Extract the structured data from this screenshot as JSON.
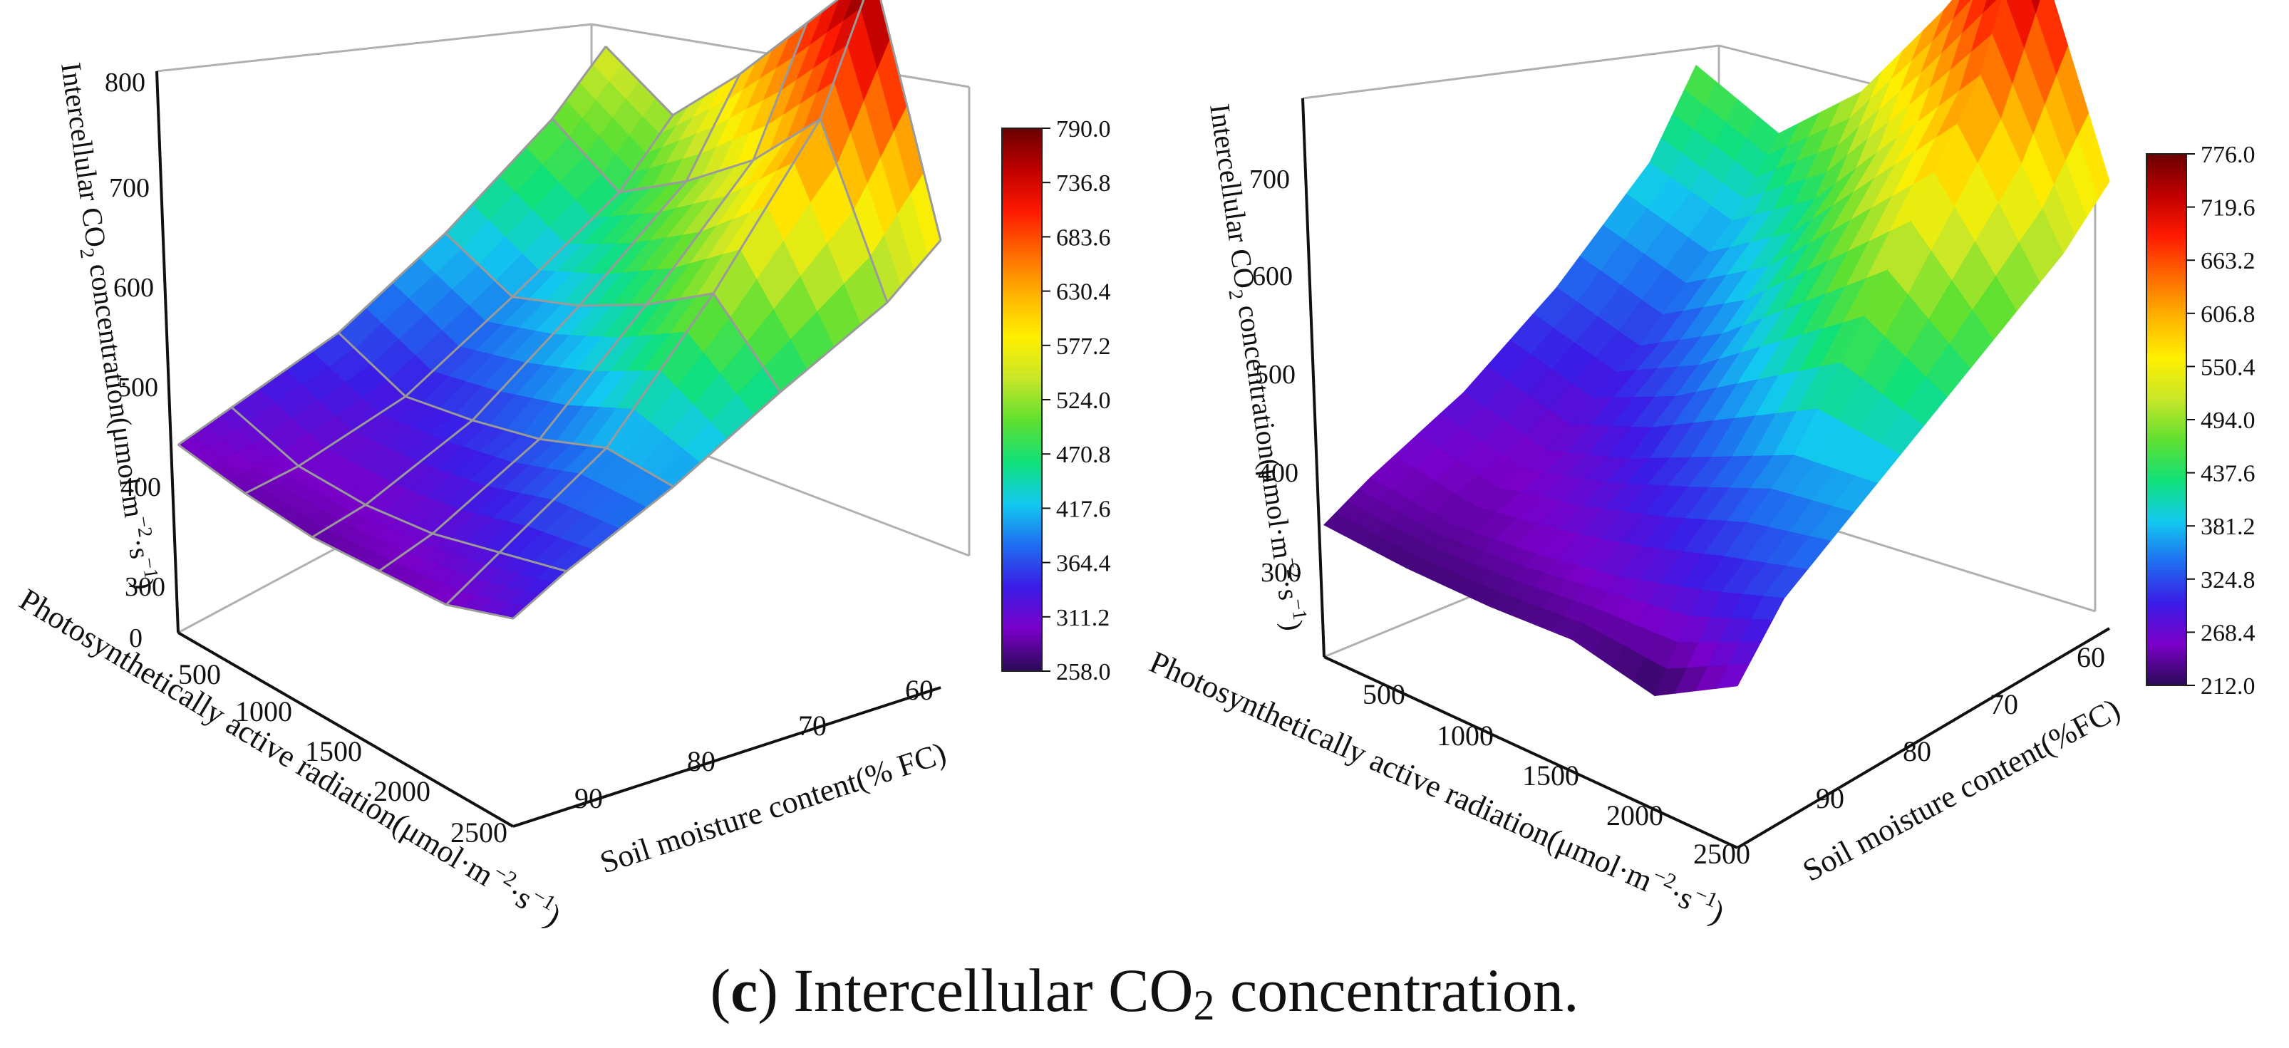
{
  "caption": {
    "open": "(",
    "letter": "c",
    "close": ")",
    "pre": "Intercellular CO",
    "sub": "2",
    "post": " concentration."
  },
  "colors": {
    "scale": [
      "#2a0a55",
      "#7a00c8",
      "#3b1be6",
      "#1f6cf0",
      "#12c8f0",
      "#10e07a",
      "#5fe030",
      "#c8e628",
      "#fff000",
      "#ffb400",
      "#ff6a00",
      "#ff1a00",
      "#c00000",
      "#6a0000"
    ],
    "axis": "#111111",
    "box": "#b0b0b0",
    "mesh": "#9a9a9a"
  },
  "chart_data": [
    {
      "type": "surface3d",
      "title": "",
      "zlabel_pre": "Intercellular CO",
      "zlabel_sub": "2",
      "zlabel_post": " concentration(μmol·m",
      "zlabel_exp1": "−2",
      "zlabel_mid": "·s",
      "zlabel_exp2": "−1",
      "zlabel_end": ")",
      "xlabel_pre": "Photosynthetically active radiation(μmol·m",
      "xlabel_exp1": "−2",
      "xlabel_mid": "·s",
      "xlabel_exp2": "−1",
      "xlabel_end": ")",
      "ylabel": "Soil moisture content(% FC)",
      "x": [
        0,
        500,
        1000,
        1500,
        2000,
        2500
      ],
      "y": [
        55,
        60,
        70,
        80,
        90,
        95
      ],
      "z": [
        [
          560,
          505,
          425,
          360,
          320,
          300
        ],
        [
          530,
          470,
          400,
          335,
          300,
          290
        ],
        [
          610,
          520,
          430,
          350,
          300,
          285
        ],
        [
          700,
          580,
          470,
          370,
          310,
          290
        ],
        [
          790,
          660,
          520,
          400,
          330,
          295
        ],
        [
          560,
          515,
          460,
          400,
          350,
          320
        ]
      ],
      "xticks": [
        "500",
        "1000",
        "1500",
        "2000",
        "2500"
      ],
      "yticks": [
        "60",
        "70",
        "80",
        "90"
      ],
      "zticks": [
        "0",
        "300",
        "400",
        "500",
        "600",
        "700",
        "800"
      ],
      "zlim": [
        258,
        790
      ],
      "colorbar": [
        "790.0",
        "736.8",
        "683.6",
        "630.4",
        "577.2",
        "524.0",
        "470.8",
        "417.6",
        "364.4",
        "311.2",
        "258.0"
      ],
      "mesh": true
    },
    {
      "type": "surface3d",
      "title": "",
      "zlabel_pre": "Intercellular CO",
      "zlabel_sub": "2",
      "zlabel_post": " concentration(μmol·m",
      "zlabel_exp1": "−2",
      "zlabel_mid": "·s",
      "zlabel_exp2": "−1",
      "zlabel_end": ")",
      "xlabel_pre": "Photosynthetically active radiation(μmol·m",
      "xlabel_exp1": "−2",
      "xlabel_mid": "·s",
      "xlabel_exp2": "−1",
      "xlabel_end": ")",
      "ylabel": "Soil moisture content(%FC)",
      "x": [
        0,
        500,
        1000,
        1500,
        2000,
        2500
      ],
      "y": [
        55,
        60,
        70,
        80,
        90,
        95
      ],
      "z": [
        [
          470,
          400,
          330,
          280,
          250,
          230
        ],
        [
          440,
          380,
          310,
          260,
          240,
          225
        ],
        [
          520,
          440,
          360,
          290,
          250,
          225
        ],
        [
          640,
          540,
          430,
          330,
          265,
          230
        ],
        [
          776,
          640,
          500,
          370,
          290,
          212
        ],
        [
          545,
          500,
          440,
          380,
          320,
          260
        ]
      ],
      "xticks": [
        "500",
        "1000",
        "1500",
        "2000",
        "2500"
      ],
      "yticks": [
        "60",
        "70",
        "80",
        "90"
      ],
      "zticks": [
        "300",
        "400",
        "500",
        "600",
        "700"
      ],
      "zlim": [
        212,
        776
      ],
      "colorbar": [
        "776.0",
        "719.6",
        "663.2",
        "606.8",
        "550.4",
        "494.0",
        "437.6",
        "381.2",
        "324.8",
        "268.4",
        "212.0"
      ],
      "mesh": false
    }
  ]
}
